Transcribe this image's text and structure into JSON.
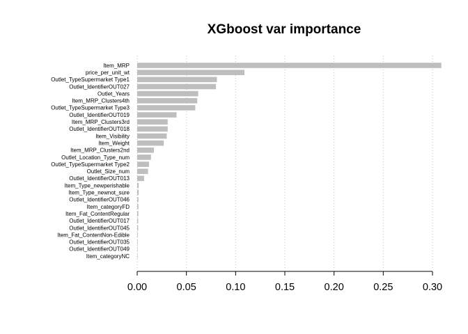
{
  "chart_data": {
    "type": "bar",
    "orientation": "horizontal",
    "title": "XGboost var importance",
    "xlabel": "",
    "ylabel": "",
    "xlim": [
      0,
      0.31
    ],
    "xticks": [
      "0.00",
      "0.05",
      "0.10",
      "0.15",
      "0.20",
      "0.25",
      "0.30"
    ],
    "grid": "vertical dotted",
    "categories": [
      "Item_MRP",
      "price_per_unit_wt",
      "Outlet_TypeSupermarket Type1",
      "Outlet_IdentifierOUT027",
      "Outlet_Years",
      "Item_MRP_Clusters4th",
      "Outlet_TypeSupermarket Type3",
      "Outlet_IdentifierOUT019",
      "Item_MRP_Clusters3rd",
      "Outlet_IdentifierOUT018",
      "Item_Visibility",
      "Item_Weight",
      "Item_MRP_Clusters2nd",
      "Outlet_Location_Type_num",
      "Outlet_TypeSupermarket Type2",
      "Outlet_Size_num",
      "Outlet_IdentifierOUT013",
      "Item_Type_newperishable",
      "Item_Type_newnot_sure",
      "Outlet_IdentifierOUT046",
      "Item_categoryFD",
      "Item_Fat_ContentRegular",
      "Outlet_IdentifierOUT017",
      "Outlet_IdentifierOUT045",
      "Item_Fat_ContentNon-Edible",
      "Outlet_IdentifierOUT035",
      "Outlet_IdentifierOUT049",
      "Item_categoryNC"
    ],
    "values": [
      0.309,
      0.109,
      0.081,
      0.08,
      0.062,
      0.061,
      0.059,
      0.04,
      0.031,
      0.031,
      0.03,
      0.027,
      0.017,
      0.014,
      0.012,
      0.011,
      0.007,
      0.0015,
      0.0015,
      0.0012,
      0.0012,
      0.0012,
      0.001,
      0.001,
      0.0006,
      0.0005,
      0.0004,
      0.0003
    ],
    "bar_color": "#bebebe"
  }
}
